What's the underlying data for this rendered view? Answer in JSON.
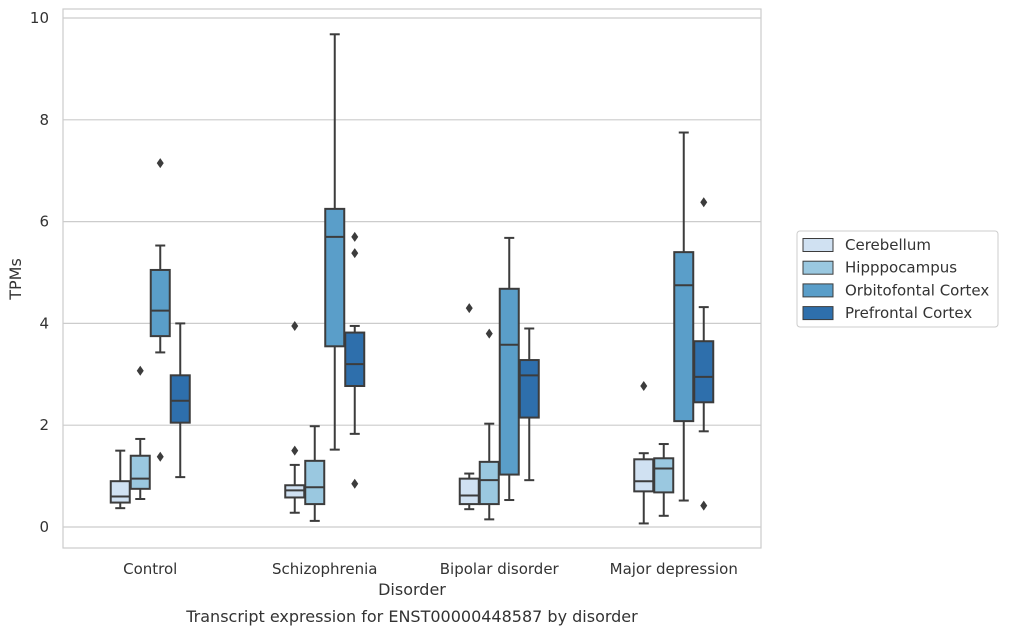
{
  "chart_data": {
    "type": "box",
    "title": "Transcript expression for ENST00000448587 by disorder",
    "xlabel": "Disorder",
    "ylabel": "TPMs",
    "ylim": [
      -0.4,
      10.2
    ],
    "yticks": [
      0,
      2,
      4,
      6,
      8,
      10
    ],
    "grid": true,
    "legend_position": "right",
    "categories": [
      "Control",
      "Schizophrenia",
      "Bipolar disorder",
      "Major depression"
    ],
    "series": [
      {
        "name": "Cerebellum",
        "color": "#d0e1f2",
        "boxes": [
          {
            "min": 0.37,
            "q1": 0.48,
            "median": 0.6,
            "q3": 0.9,
            "max": 1.5,
            "outliers": []
          },
          {
            "min": 0.28,
            "q1": 0.58,
            "median": 0.72,
            "q3": 0.82,
            "max": 1.22,
            "outliers": [
              1.5,
              3.95
            ]
          },
          {
            "min": 0.35,
            "q1": 0.45,
            "median": 0.62,
            "q3": 0.95,
            "max": 1.05,
            "outliers": [
              4.3
            ]
          },
          {
            "min": 0.07,
            "q1": 0.7,
            "median": 0.9,
            "q3": 1.33,
            "max": 1.45,
            "outliers": [
              2.77
            ]
          }
        ]
      },
      {
        "name": "Hipppocampus",
        "color": "#9ac8e0",
        "boxes": [
          {
            "min": 0.55,
            "q1": 0.75,
            "median": 0.95,
            "q3": 1.4,
            "max": 1.73,
            "outliers": [
              3.07
            ]
          },
          {
            "min": 0.12,
            "q1": 0.45,
            "median": 0.78,
            "q3": 1.3,
            "max": 1.98,
            "outliers": []
          },
          {
            "min": 0.15,
            "q1": 0.45,
            "median": 0.92,
            "q3": 1.28,
            "max": 2.03,
            "outliers": [
              3.8
            ]
          },
          {
            "min": 0.22,
            "q1": 0.68,
            "median": 1.15,
            "q3": 1.35,
            "max": 1.63,
            "outliers": []
          }
        ]
      },
      {
        "name": "Orbitofontal Cortex",
        "color": "#5a9ec9",
        "boxes": [
          {
            "min": 3.43,
            "q1": 3.75,
            "median": 4.25,
            "q3": 5.05,
            "max": 5.53,
            "outliers": [
              1.38,
              7.15
            ]
          },
          {
            "min": 1.52,
            "q1": 3.55,
            "median": 5.7,
            "q3": 6.25,
            "max": 9.68,
            "outliers": []
          },
          {
            "min": 0.53,
            "q1": 1.03,
            "median": 3.58,
            "q3": 4.68,
            "max": 5.68,
            "outliers": []
          },
          {
            "min": 0.52,
            "q1": 2.08,
            "median": 4.75,
            "q3": 5.4,
            "max": 7.75,
            "outliers": []
          }
        ]
      },
      {
        "name": "Prefrontal Cortex",
        "color": "#2e6fac",
        "boxes": [
          {
            "min": 0.98,
            "q1": 2.05,
            "median": 2.48,
            "q3": 2.98,
            "max": 4.0,
            "outliers": []
          },
          {
            "min": 1.83,
            "q1": 2.77,
            "median": 3.2,
            "q3": 3.82,
            "max": 3.95,
            "outliers": [
              0.85,
              5.38,
              5.7
            ]
          },
          {
            "min": 0.92,
            "q1": 2.15,
            "median": 2.98,
            "q3": 3.28,
            "max": 3.9,
            "outliers": []
          },
          {
            "min": 1.88,
            "q1": 2.45,
            "median": 2.95,
            "q3": 3.65,
            "max": 4.32,
            "outliers": [
              0.42,
              6.38
            ]
          }
        ]
      }
    ]
  }
}
